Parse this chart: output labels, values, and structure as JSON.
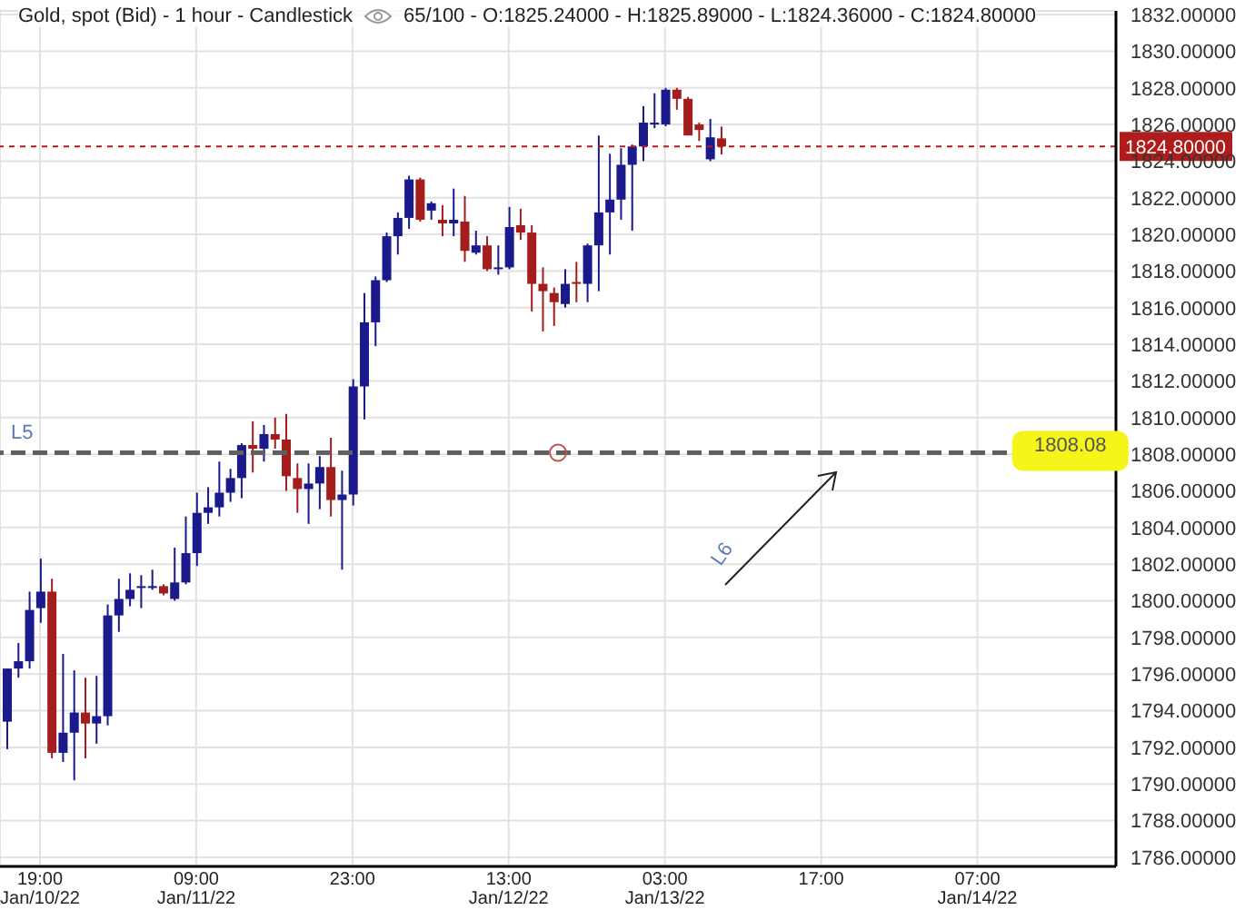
{
  "chart_data": {
    "type": "candlestick",
    "title": "Gold, spot (Bid) - 1 hour - Candlestick",
    "subtitle": "65/100 - O:1825.24000 - H:1825.89000 - L:1824.36000 - C:1824.80000",
    "x": [
      "--01-10T16:00",
      "--01-10T17:00",
      "--01-10T18:00",
      "--01-10T19:00",
      "--01-10T20:00",
      "--01-10T21:00",
      "--01-10T22:00",
      "--01-10T23:00",
      "--01-11T00:00",
      "--01-11T01:00",
      "--01-11T02:00",
      "--01-11T03:00",
      "--01-11T04:00",
      "--01-11T05:00",
      "--01-11T06:00",
      "--01-11T07:00",
      "--01-11T08:00",
      "--01-11T09:00",
      "--01-11T10:00",
      "--01-11T11:00",
      "--01-11T12:00",
      "--01-11T13:00",
      "--01-11T14:00",
      "--01-11T15:00",
      "--01-11T16:00",
      "--01-11T17:00",
      "--01-11T18:00",
      "--01-11T19:00",
      "--01-11T20:00",
      "--01-11T21:00",
      "--01-11T22:00",
      "--01-11T23:00",
      "--01-12T00:00",
      "--01-12T01:00",
      "--01-12T02:00",
      "--01-12T03:00",
      "--01-12T04:00",
      "--01-12T05:00",
      "--01-12T06:00",
      "--01-12T07:00",
      "--01-12T08:00",
      "--01-12T09:00",
      "--01-12T10:00",
      "--01-12T11:00",
      "--01-12T12:00",
      "--01-12T13:00",
      "--01-12T14:00",
      "--01-12T15:00",
      "--01-12T16:00",
      "--01-12T17:00",
      "--01-12T18:00",
      "--01-12T19:00",
      "--01-12T20:00",
      "--01-12T21:00",
      "--01-12T22:00",
      "--01-12T23:00",
      "--01-13T00:00",
      "--01-13T01:00",
      "--01-13T02:00",
      "--01-13T03:00",
      "--01-13T04:00",
      "--01-13T05:00",
      "--01-13T06:00",
      "--01-13T07:00",
      "--01-13T08:00"
    ],
    "ohlc": [
      [
        1793.4,
        1796.3,
        1791.9,
        1796.3
      ],
      [
        1796.3,
        1797.7,
        1795.8,
        1796.7
      ],
      [
        1796.7,
        1800.5,
        1796.3,
        1799.5
      ],
      [
        1799.6,
        1802.3,
        1798.8,
        1800.5
      ],
      [
        1800.5,
        1801.2,
        1791.4,
        1791.7
      ],
      [
        1791.7,
        1797.1,
        1791.2,
        1792.8
      ],
      [
        1792.8,
        1796.2,
        1790.2,
        1793.9
      ],
      [
        1793.9,
        1795.8,
        1791.4,
        1793.3
      ],
      [
        1793.3,
        1795.9,
        1792.2,
        1793.7
      ],
      [
        1793.7,
        1799.8,
        1793.2,
        1799.2
      ],
      [
        1799.2,
        1801.2,
        1798.3,
        1800.1
      ],
      [
        1800.1,
        1801.5,
        1799.7,
        1800.6
      ],
      [
        1800.7,
        1801.4,
        1799.6,
        1800.8
      ],
      [
        1800.7,
        1801.7,
        1800.6,
        1800.8
      ],
      [
        1800.8,
        1800.9,
        1800.3,
        1800.4
      ],
      [
        1800.1,
        1802.9,
        1800.0,
        1801.0
      ],
      [
        1801.0,
        1804.6,
        1800.9,
        1802.6
      ],
      [
        1802.6,
        1805.9,
        1801.9,
        1804.8
      ],
      [
        1804.8,
        1806.2,
        1804.2,
        1805.1
      ],
      [
        1805.1,
        1807.6,
        1804.6,
        1805.9
      ],
      [
        1805.9,
        1807.2,
        1805.4,
        1806.7
      ],
      [
        1806.7,
        1808.6,
        1805.6,
        1808.5
      ],
      [
        1808.5,
        1809.8,
        1807.0,
        1808.3
      ],
      [
        1808.3,
        1809.6,
        1807.6,
        1809.1
      ],
      [
        1809.1,
        1810.0,
        1808.3,
        1808.8
      ],
      [
        1808.8,
        1810.2,
        1806.0,
        1806.8
      ],
      [
        1806.7,
        1807.5,
        1804.8,
        1806.1
      ],
      [
        1806.1,
        1807.5,
        1804.2,
        1806.4
      ],
      [
        1806.4,
        1807.9,
        1805.0,
        1807.3
      ],
      [
        1807.3,
        1808.9,
        1804.6,
        1805.5
      ],
      [
        1805.5,
        1807.1,
        1801.7,
        1805.8
      ],
      [
        1805.8,
        1812.1,
        1805.2,
        1811.7
      ],
      [
        1811.7,
        1816.8,
        1809.9,
        1815.2
      ],
      [
        1815.2,
        1817.7,
        1813.9,
        1817.5
      ],
      [
        1817.5,
        1820.1,
        1817.4,
        1819.9
      ],
      [
        1819.9,
        1821.2,
        1818.9,
        1820.9
      ],
      [
        1820.9,
        1823.2,
        1820.3,
        1823.0
      ],
      [
        1823.0,
        1823.1,
        1820.7,
        1820.8
      ],
      [
        1821.3,
        1821.8,
        1820.8,
        1821.7
      ],
      [
        1820.8,
        1821.6,
        1819.9,
        1820.6
      ],
      [
        1820.6,
        1822.5,
        1819.9,
        1820.8
      ],
      [
        1820.7,
        1822.1,
        1818.5,
        1819.1
      ],
      [
        1819.0,
        1820.2,
        1818.9,
        1819.4
      ],
      [
        1819.4,
        1819.9,
        1818.0,
        1818.1
      ],
      [
        1818.1,
        1819.4,
        1817.8,
        1818.2
      ],
      [
        1818.2,
        1821.5,
        1818.1,
        1820.4
      ],
      [
        1820.5,
        1821.4,
        1819.7,
        1820.1
      ],
      [
        1820.1,
        1820.5,
        1815.8,
        1817.3
      ],
      [
        1817.3,
        1818.2,
        1814.7,
        1816.9
      ],
      [
        1816.8,
        1817.1,
        1815.0,
        1816.3
      ],
      [
        1816.2,
        1818.1,
        1816.0,
        1817.3
      ],
      [
        1817.4,
        1818.5,
        1816.3,
        1817.3
      ],
      [
        1817.3,
        1819.5,
        1816.3,
        1819.4
      ],
      [
        1819.4,
        1825.4,
        1816.9,
        1821.2
      ],
      [
        1821.2,
        1824.4,
        1818.9,
        1821.9
      ],
      [
        1821.9,
        1824.7,
        1820.8,
        1823.8
      ],
      [
        1823.8,
        1824.9,
        1820.2,
        1824.8
      ],
      [
        1824.8,
        1827.0,
        1824.0,
        1826.1
      ],
      [
        1826.0,
        1827.7,
        1825.8,
        1826.1
      ],
      [
        1826.0,
        1828.0,
        1825.9,
        1827.9
      ],
      [
        1827.9,
        1828.0,
        1826.8,
        1827.4
      ],
      [
        1827.4,
        1827.5,
        1825.4,
        1825.4
      ],
      [
        1826.0,
        1826.1,
        1825.1,
        1825.7
      ],
      [
        1824.1,
        1826.3,
        1824.0,
        1825.3
      ],
      [
        1825.24,
        1825.89,
        1824.36,
        1824.8
      ]
    ],
    "colors": [
      "#1a1a8c",
      "#1a1a8c",
      "#1a1a8c",
      "#1a1a8c",
      "#a31d1d",
      "#1a1a8c",
      "#1a1a8c",
      "#a31d1d",
      "#1a1a8c",
      "#1a1a8c",
      "#1a1a8c",
      "#1a1a8c",
      "#1a1a8c",
      "#1a1a8c",
      "#a31d1d",
      "#1a1a8c",
      "#1a1a8c",
      "#1a1a8c",
      "#1a1a8c",
      "#1a1a8c",
      "#1a1a8c",
      "#1a1a8c",
      "#a31d1d",
      "#1a1a8c",
      "#a31d1d",
      "#a31d1d",
      "#a31d1d",
      "#1a1a8c",
      "#1a1a8c",
      "#a31d1d",
      "#1a1a8c",
      "#1a1a8c",
      "#1a1a8c",
      "#1a1a8c",
      "#1a1a8c",
      "#1a1a8c",
      "#1a1a8c",
      "#a31d1d",
      "#1a1a8c",
      "#a31d1d",
      "#1a1a8c",
      "#a31d1d",
      "#1a1a8c",
      "#a31d1d",
      "#1a1a8c",
      "#1a1a8c",
      "#a31d1d",
      "#a31d1d",
      "#a31d1d",
      "#a31d1d",
      "#1a1a8c",
      "#a31d1d",
      "#1a1a8c",
      "#1a1a8c",
      "#1a1a8c",
      "#1a1a8c",
      "#1a1a8c",
      "#1a1a8c",
      "#1a1a8c",
      "#1a1a8c",
      "#a31d1d",
      "#a31d1d",
      "#a31d1d",
      "#1a1a8c",
      "#a31d1d"
    ],
    "xlim": [
      "--01-10T15:25",
      "--01-14T19:25"
    ],
    "xticks": [
      {
        "value": "--01-10T19:00",
        "label": "19:00\nJan/10/22"
      },
      {
        "value": "--01-11T09:00",
        "label": "09:00\nJan/11/22"
      },
      {
        "value": "--01-11T23:00",
        "label": "23:00"
      },
      {
        "value": "--01-12T13:00",
        "label": "13:00\nJan/12/22"
      },
      {
        "value": "--01-13T03:00",
        "label": "03:00\nJan/13/22"
      },
      {
        "value": "--01-13T17:00",
        "label": "17:00"
      },
      {
        "value": "--01-14T07:00",
        "label": "07:00\nJan/14/22"
      }
    ],
    "ylim": [
      1785.5,
      1832.2
    ],
    "yticks": [
      {
        "value": 1786,
        "label": "1786.00000"
      },
      {
        "value": 1788,
        "label": "1788.00000"
      },
      {
        "value": 1790,
        "label": "1790.00000"
      },
      {
        "value": 1792,
        "label": "1792.00000"
      },
      {
        "value": 1794,
        "label": "1794.00000"
      },
      {
        "value": 1796,
        "label": "1796.00000"
      },
      {
        "value": 1798,
        "label": "1798.00000"
      },
      {
        "value": 1800,
        "label": "1800.00000"
      },
      {
        "value": 1802,
        "label": "1802.00000"
      },
      {
        "value": 1804,
        "label": "1804.00000"
      },
      {
        "value": 1806,
        "label": "1806.00000"
      },
      {
        "value": 1808,
        "label": "1808.00000"
      },
      {
        "value": 1810,
        "label": "1810.00000"
      },
      {
        "value": 1812,
        "label": "1812.00000"
      },
      {
        "value": 1814,
        "label": "1814.00000"
      },
      {
        "value": 1816,
        "label": "1816.00000"
      },
      {
        "value": 1818,
        "label": "1818.00000"
      },
      {
        "value": 1820,
        "label": "1820.00000"
      },
      {
        "value": 1822,
        "label": "1822.00000"
      },
      {
        "value": 1824,
        "label": "1824.00000"
      },
      {
        "value": 1826,
        "label": "1826.00000"
      },
      {
        "value": 1828,
        "label": "1828.00000"
      },
      {
        "value": 1830,
        "label": "1830.00000"
      },
      {
        "value": 1832,
        "label": "1832.00000"
      }
    ],
    "grid": true,
    "ref_lines": [
      {
        "axis": "y",
        "value": 1808.08,
        "label": "L5",
        "color": "#606060",
        "line_style": "dashed"
      },
      {
        "axis": "y",
        "value": 1824.8,
        "label": "1824.80000",
        "color": "#b01c1c",
        "line_style": "dotted"
      }
    ],
    "annotations": [
      {
        "text": "1808.08",
        "x": "--01-14T15:00",
        "y": 1808.08
      },
      "L6"
    ]
  }
}
